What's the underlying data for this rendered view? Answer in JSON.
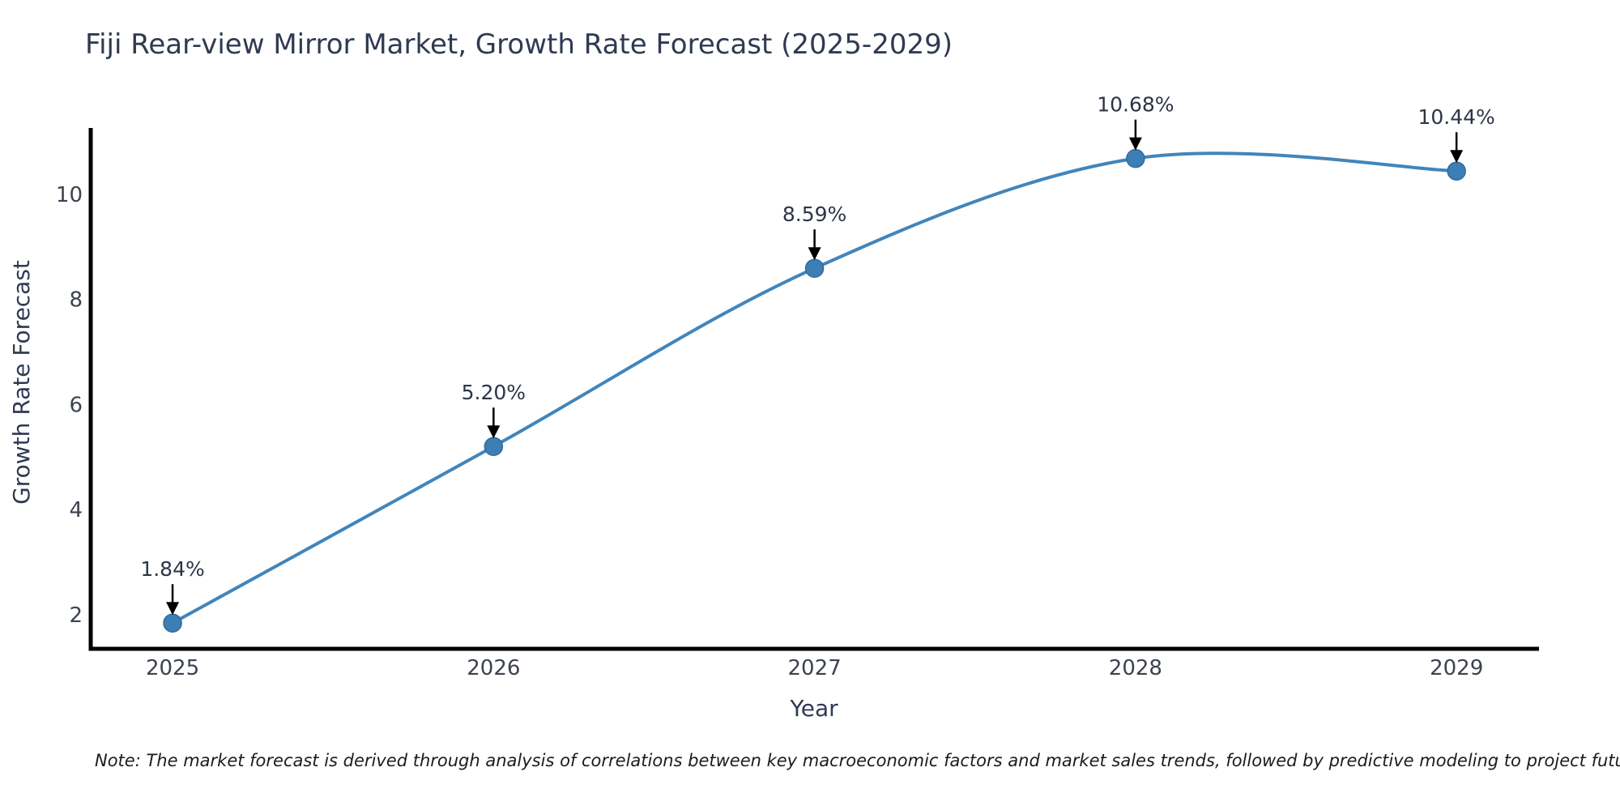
{
  "title": "Fiji Rear-view Mirror Market, Growth Rate Forecast (2025-2029)",
  "note": "Note: The market forecast is derived through analysis of correlations between key macroeconomic factors and market sales trends, followed by predictive modeling to project future sales",
  "chart_data": {
    "type": "line",
    "title": "Fiji Rear-view Mirror Market, Growth Rate Forecast (2025-2029)",
    "xlabel": "Year",
    "ylabel": "Growth Rate Forecast",
    "x": [
      2025,
      2026,
      2027,
      2028,
      2029
    ],
    "values": [
      1.84,
      5.2,
      8.59,
      10.68,
      10.44
    ],
    "point_labels": [
      "1.84%",
      "5.20%",
      "8.59%",
      "10.68%",
      "10.44%"
    ],
    "xticks": [
      2025,
      2026,
      2027,
      2028,
      2029
    ],
    "yticks": [
      2,
      4,
      6,
      8,
      10
    ],
    "xlim": [
      2024.745,
      2029.257
    ],
    "ylim": [
      1.35,
      11.26
    ],
    "grid": false,
    "legend": "none",
    "smooth": true,
    "line_color": "#4185bb",
    "marker_color": "#3d7fb5",
    "marker_edge_color": "#2f6a9e",
    "axis_color": "#000000",
    "annotation_arrow_color": "#000000"
  }
}
